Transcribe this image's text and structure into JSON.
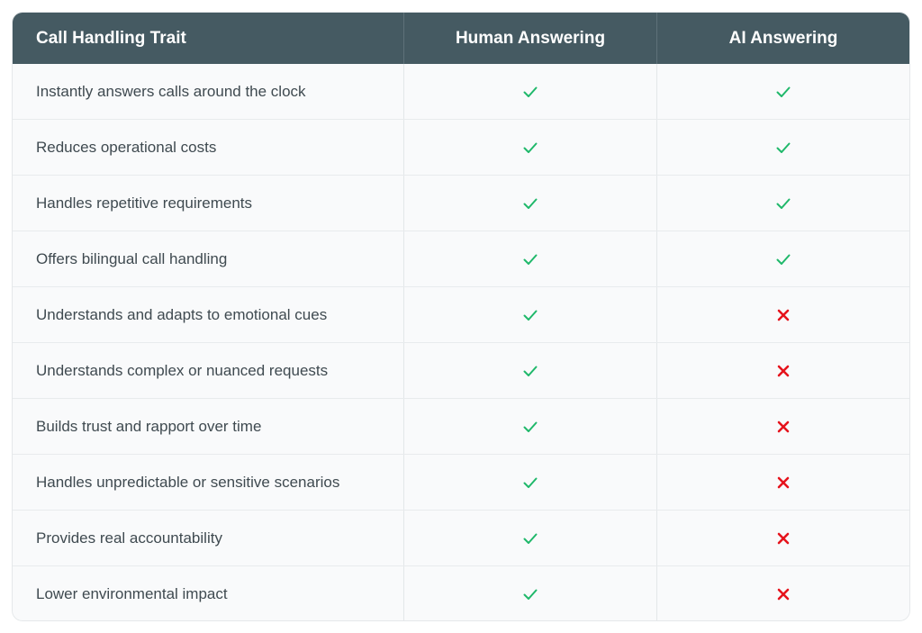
{
  "header": {
    "trait": "Call Handling Trait",
    "human": "Human Answering",
    "ai": "AI Answering"
  },
  "colors": {
    "header_bg": "#455a62",
    "check": "#1fb86a",
    "cross": "#e5131c"
  },
  "rows": [
    {
      "trait": "Instantly answers calls around the clock",
      "human": "check-icon",
      "ai": "check-icon"
    },
    {
      "trait": "Reduces operational costs",
      "human": "check-icon",
      "ai": "check-icon"
    },
    {
      "trait": "Handles repetitive requirements",
      "human": "check-icon",
      "ai": "check-icon"
    },
    {
      "trait": "Offers bilingual call handling",
      "human": "check-icon",
      "ai": "check-icon"
    },
    {
      "trait": "Understands and adapts to emotional cues",
      "human": "check-icon",
      "ai": "cross-icon"
    },
    {
      "trait": "Understands complex or nuanced requests",
      "human": "check-icon",
      "ai": "cross-icon"
    },
    {
      "trait": "Builds trust and rapport over time",
      "human": "check-icon",
      "ai": "cross-icon"
    },
    {
      "trait": "Handles unpredictable or sensitive scenarios",
      "human": "check-icon",
      "ai": "cross-icon"
    },
    {
      "trait": "Provides real accountability",
      "human": "check-icon",
      "ai": "cross-icon"
    },
    {
      "trait": "Lower environmental impact",
      "human": "check-icon",
      "ai": "cross-icon"
    }
  ]
}
